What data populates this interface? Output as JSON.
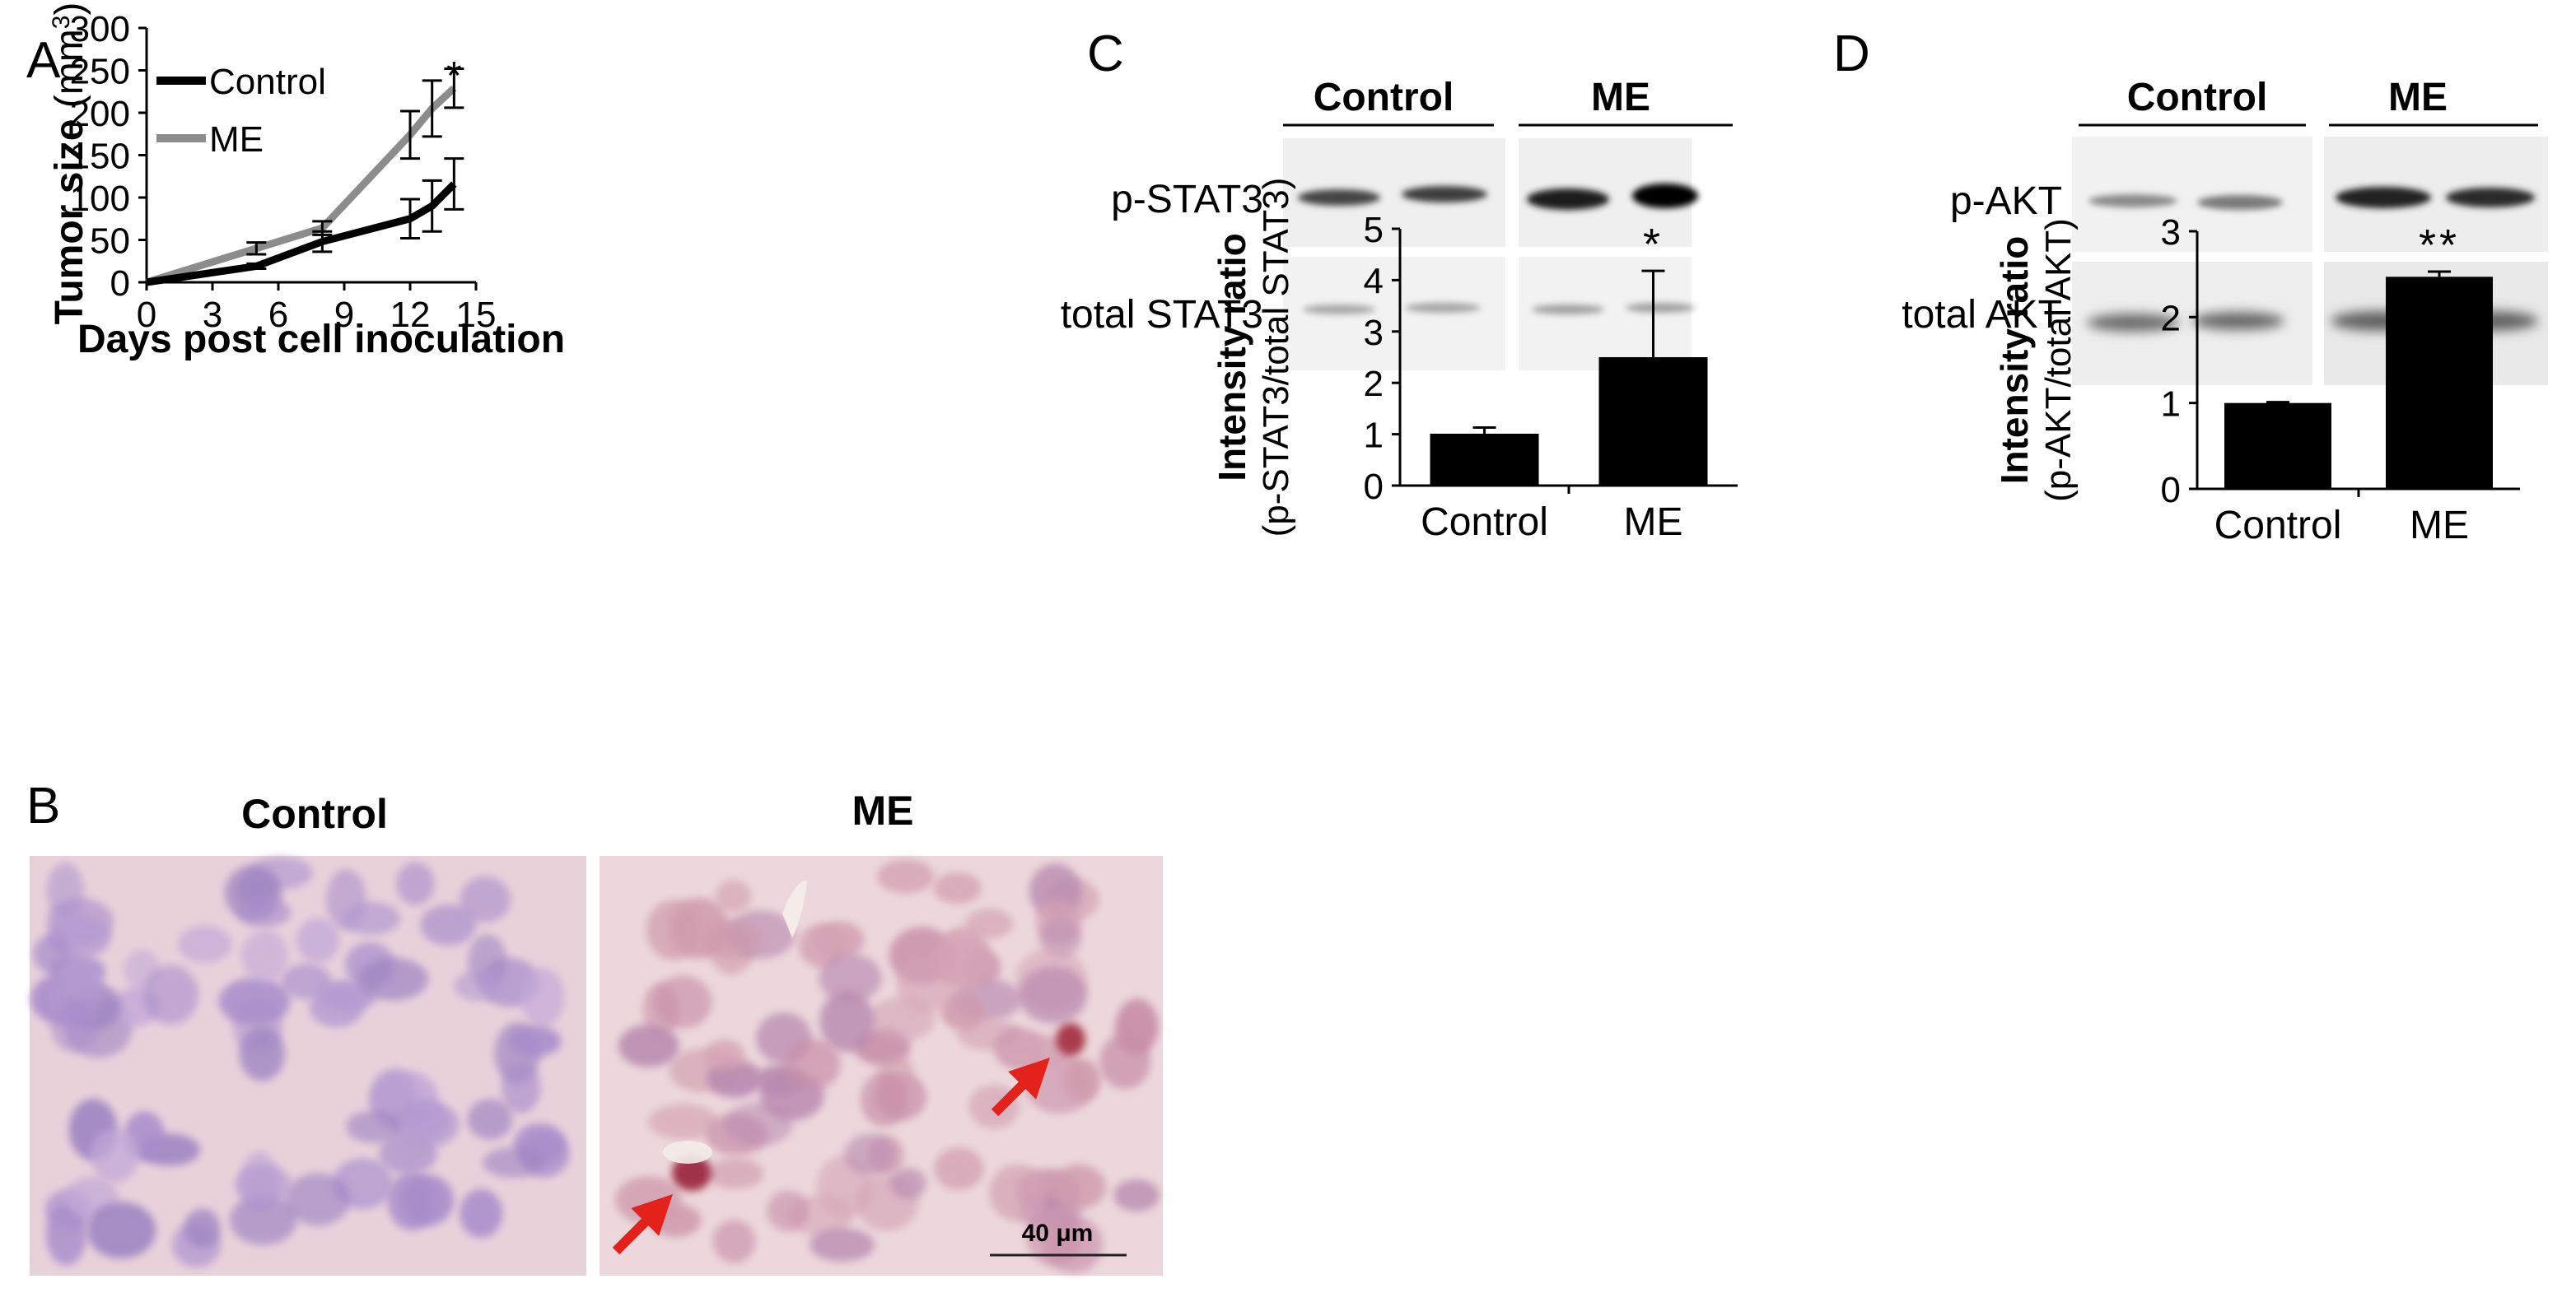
{
  "panels": {
    "a": {
      "letter": "A"
    },
    "b": {
      "letter": "B",
      "left_title": "Control",
      "right_title": "ME",
      "scale_bar": "40 μm"
    },
    "c": {
      "letter": "C",
      "blot_groups": [
        "Control",
        "ME"
      ],
      "blot_rows": [
        "p-STAT3",
        "total STAT3"
      ]
    },
    "d": {
      "letter": "D",
      "blot_groups": [
        "Control",
        "ME"
      ],
      "blot_rows": [
        "p-AKT",
        "total AKT"
      ]
    }
  },
  "chart_data": [
    {
      "type": "line",
      "panel": "A",
      "xlabel": "Days post cell inoculation",
      "ylabel": "Tumor size (mm",
      "ylabel_sup": "3",
      "ylabel_close": ")",
      "xlim": [
        0,
        15
      ],
      "ylim": [
        0,
        300
      ],
      "xticks": [
        0,
        3,
        6,
        9,
        12,
        15
      ],
      "yticks": [
        0,
        50,
        100,
        150,
        200,
        250,
        300
      ],
      "legend_position": "top-left",
      "annotation": "*",
      "series": [
        {
          "name": "Control",
          "color": "#000000",
          "x": [
            0,
            5,
            8,
            12,
            13,
            14
          ],
          "y": [
            0,
            19,
            48,
            75,
            90,
            116
          ],
          "err": [
            0,
            3,
            12,
            23,
            30,
            30
          ]
        },
        {
          "name": "ME",
          "color": "#8c8c8c",
          "x": [
            0,
            5,
            8,
            12,
            13,
            14
          ],
          "y": [
            0,
            40,
            64,
            174,
            205,
            229
          ],
          "err": [
            0,
            7,
            8,
            28,
            33,
            23
          ]
        }
      ]
    },
    {
      "type": "bar",
      "panel": "C",
      "categories": [
        "Control",
        "ME"
      ],
      "values": [
        1.01,
        2.5
      ],
      "err": [
        0.12,
        1.68
      ],
      "ylim": [
        0,
        5
      ],
      "yticks": [
        0,
        1,
        2,
        3,
        4,
        5
      ],
      "ylabel": "Intensity ratio",
      "ylabel2": "(p-STAT3/total STAT3)",
      "annotations": [
        "",
        "*"
      ],
      "color": "#000000"
    },
    {
      "type": "bar",
      "panel": "D",
      "categories": [
        "Control",
        "ME"
      ],
      "values": [
        1.0,
        2.47
      ],
      "err": [
        0.01,
        0.06
      ],
      "ylim": [
        0,
        3
      ],
      "yticks": [
        0,
        1,
        2,
        3
      ],
      "ylabel": "Intensity ratio",
      "ylabel2": "(p-AKT/total AKT)",
      "annotations": [
        "",
        "**"
      ],
      "color": "#000000"
    }
  ]
}
